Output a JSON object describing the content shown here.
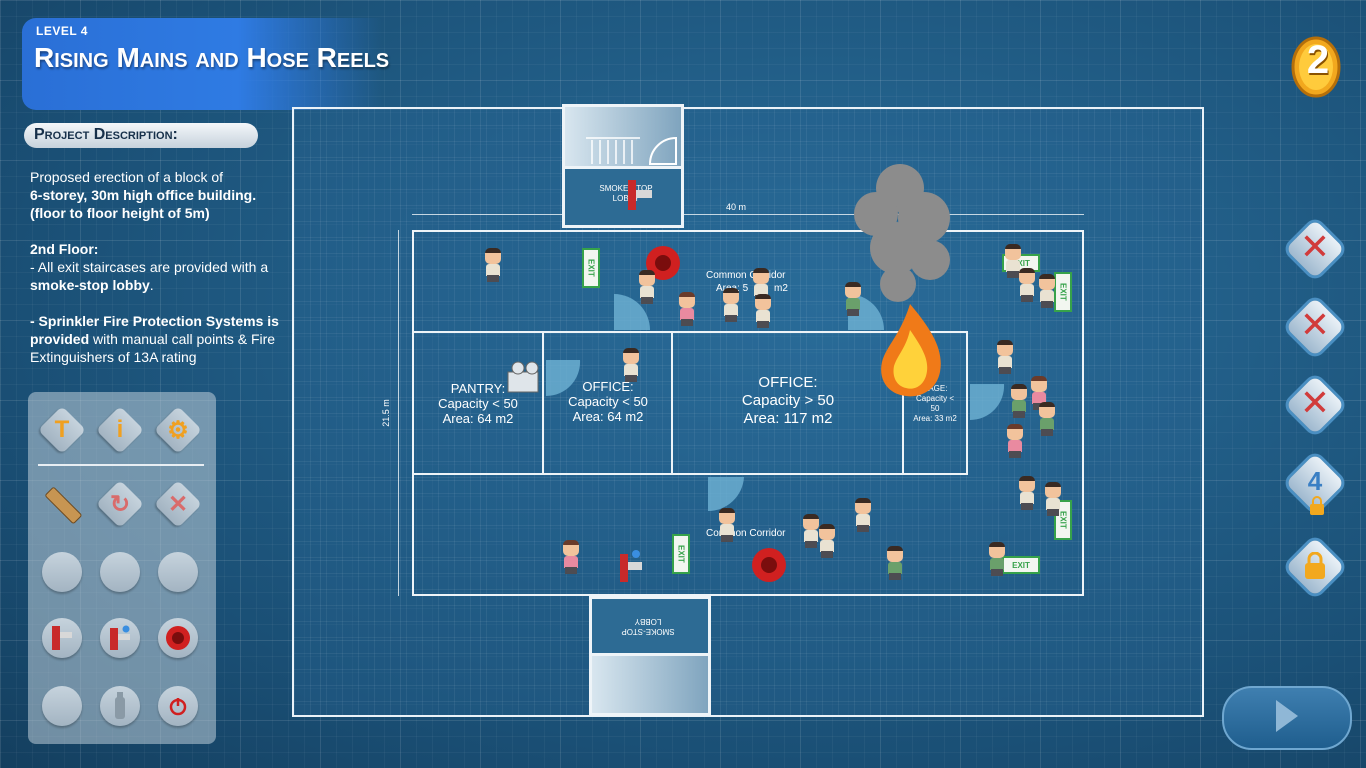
{
  "header": {
    "level": "LEVEL 4",
    "title": "Rising Mains and Hose Reels"
  },
  "project": {
    "label": "Project Description:",
    "p1_line1": "Proposed erection of a block of",
    "p1_bold": "6-storey, 30m high office building. (floor to floor height of 5m)",
    "floor_heading": "2nd Floor:",
    "p2_pre": "- All exit staircases are provided with a ",
    "p2_bold": "smoke-stop lobby",
    "p2_post": ".",
    "p3_bold": "- Sprinkler Fire Protection Systems is provided",
    "p3_post": " with manual call points & Fire Extinguishers of 13A rating"
  },
  "tools": [
    {
      "name": "text-tool",
      "icon": "letter-T-icon",
      "glyph": "T"
    },
    {
      "name": "info-tool",
      "icon": "info-icon",
      "glyph": "i"
    },
    {
      "name": "settings-tool",
      "icon": "gear-icon",
      "glyph": "⚙"
    },
    {
      "name": "ruler-tool",
      "icon": "ruler-icon"
    },
    {
      "name": "undo-tool",
      "icon": "undo-icon",
      "glyph": "↻"
    },
    {
      "name": "delete-tool",
      "icon": "close-icon",
      "glyph": "✕"
    }
  ],
  "coins": "2",
  "plan": {
    "dimension_width": "40 m",
    "dimension_height": "21.5 m",
    "top_lobby": "SMOKE-STOP LOBBY",
    "bottom_lobby": "SMOKE-STOP LOBBY",
    "corridor_top": "Common Corridor",
    "corridor_top_area": "Area: 5",
    "corridor_top_area_end": "m2",
    "corridor_bottom": "Common Corridor",
    "pantry": {
      "name": "PANTRY:",
      "capacity": "Capacity < 50",
      "area": "Area: 64 m2"
    },
    "office1": {
      "name": "OFFICE:",
      "capacity": "Capacity < 50",
      "area": "Area: 64 m2"
    },
    "office2": {
      "name": "OFFICE:",
      "capacity": "Capacity > 50",
      "area": "Area: 117 m2"
    },
    "storage": {
      "name": "RAGE:",
      "capacity": "Capacity <",
      "cap2": "50",
      "area": "Area: 33 m2"
    },
    "exit_label": "EXIT"
  },
  "side_buttons": [
    {
      "label": "",
      "state": "crossed"
    },
    {
      "label": "",
      "state": "crossed"
    },
    {
      "label": "",
      "state": "crossed"
    },
    {
      "label": "4",
      "state": "locked"
    },
    {
      "label": "",
      "state": "locked"
    }
  ],
  "colors": {
    "accent": "#2f7be3",
    "wall": "#eef4f8",
    "fire": "#f0a020",
    "exit": "#36a24a"
  }
}
